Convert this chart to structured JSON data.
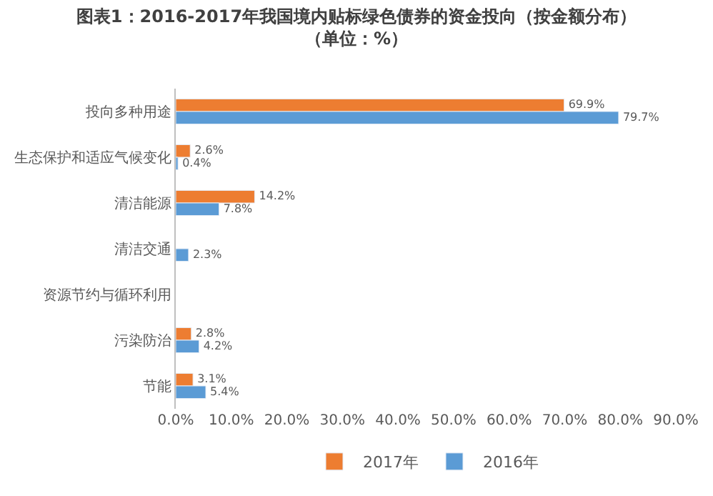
{
  "chart_data": {
    "type": "bar",
    "orientation": "horizontal",
    "title": "图表1：2016-2017年我国境内贴标绿色债券的资金投向（按金额分布）（单位：%）",
    "categories": [
      "投向多种用途",
      "生态保护和适应气候变化",
      "清洁能源",
      "清洁交通",
      "资源节约与循环利用",
      "污染防治",
      "节能"
    ],
    "series": [
      {
        "name": "2017年",
        "color": "#ed7d31",
        "values": [
          69.9,
          2.6,
          14.2,
          null,
          null,
          2.8,
          3.1
        ],
        "value_labels": [
          "69.9%",
          "2.6%",
          "14.2%",
          null,
          null,
          "2.8%",
          "3.1%"
        ]
      },
      {
        "name": "2016年",
        "color": "#5b9bd5",
        "values": [
          79.7,
          0.4,
          7.8,
          2.3,
          null,
          4.2,
          5.4
        ],
        "value_labels": [
          "79.7%",
          "0.4%",
          "7.8%",
          "2.3%",
          null,
          "4.2%",
          "5.4%"
        ]
      }
    ],
    "xlim": [
      0,
      90
    ],
    "xticks": [
      {
        "value": 0,
        "label": "0.0%"
      },
      {
        "value": 10,
        "label": "10.0%"
      },
      {
        "value": 20,
        "label": "20.0%"
      },
      {
        "value": 30,
        "label": "30.0%"
      },
      {
        "value": 40,
        "label": "40.0%"
      },
      {
        "value": 50,
        "label": "50.0%"
      },
      {
        "value": 60,
        "label": "60.0%"
      },
      {
        "value": 70,
        "label": "70.0%"
      },
      {
        "value": 80,
        "label": "80.0%"
      },
      {
        "value": 90,
        "label": "90.0%"
      }
    ],
    "legend": "bottom"
  }
}
